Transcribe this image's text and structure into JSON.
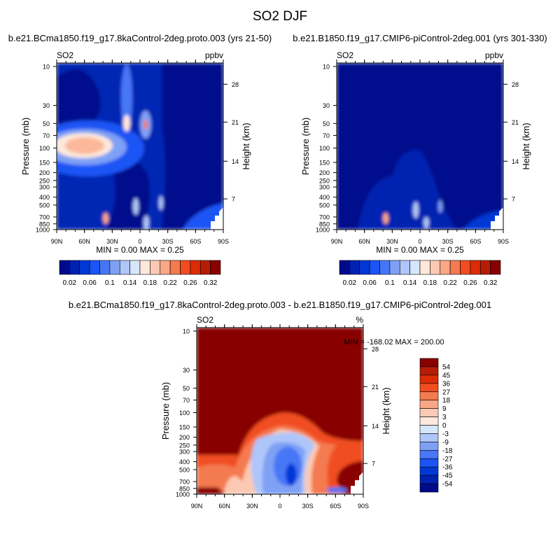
{
  "chart_data": {
    "type": "heatmap",
    "title": "SO2 DJF",
    "panels": [
      {
        "subtitle": "b.e21.BCma1850.f19_g17.8kaControl-2deg.proto.003 (yrs 21-50)",
        "left_label": "SO2",
        "right_label": "ppbv",
        "ylabel": "Pressure (mb)",
        "ylabel_right": "Height (km)",
        "x_ticks": [
          "90N",
          "60N",
          "30N",
          "0",
          "30S",
          "60S",
          "90S"
        ],
        "p_ticks": [
          10,
          30,
          50,
          70,
          100,
          150,
          200,
          250,
          300,
          400,
          500,
          700,
          850,
          1000
        ],
        "h_ticks": [
          {
            "label": "28",
            "p": 16.5
          },
          {
            "label": "21",
            "p": 48
          },
          {
            "label": "14",
            "p": 145
          },
          {
            "label": "7",
            "p": 420
          }
        ],
        "stats": "MIN =   0.00  MAX =   0.25",
        "min": 0.0,
        "max": 0.25,
        "colorbar": {
          "orientation": "horizontal",
          "labels": [
            "0.02",
            "0.06",
            "0.1",
            "0.14",
            "0.18",
            "0.22",
            "0.26",
            "0.32"
          ],
          "colors": [
            "#000a8c",
            "#0022b0",
            "#0038d6",
            "#1c55f5",
            "#4677f6",
            "#7ea0f5",
            "#aec6fa",
            "#d6e6fb",
            "#fde8dc",
            "#fccab4",
            "#f9a784",
            "#f47a50",
            "#f14d20",
            "#dc2c05",
            "#b51d05",
            "#880000"
          ]
        }
      },
      {
        "subtitle": "b.e21.B1850.f19_g17.CMIP6-piControl-2deg.001 (yrs 301-330)",
        "left_label": "SO2",
        "right_label": "ppbv",
        "ylabel": "Pressure (mb)",
        "ylabel_right": "Height (km)",
        "x_ticks": [
          "90N",
          "60N",
          "30N",
          "0",
          "30S",
          "60S",
          "90S"
        ],
        "p_ticks": [
          10,
          30,
          50,
          70,
          100,
          150,
          200,
          250,
          300,
          400,
          500,
          700,
          850,
          1000
        ],
        "h_ticks": [
          {
            "label": "28",
            "p": 16.5
          },
          {
            "label": "21",
            "p": 48
          },
          {
            "label": "14",
            "p": 145
          },
          {
            "label": "7",
            "p": 420
          }
        ],
        "stats": "MIN =   0.00  MAX =   0.25",
        "min": 0.0,
        "max": 0.25,
        "colorbar": {
          "orientation": "horizontal",
          "labels": [
            "0.02",
            "0.06",
            "0.1",
            "0.14",
            "0.18",
            "0.22",
            "0.26",
            "0.32"
          ],
          "colors": [
            "#000a8c",
            "#0022b0",
            "#0038d6",
            "#1c55f5",
            "#4677f6",
            "#7ea0f5",
            "#aec6fa",
            "#d6e6fb",
            "#fde8dc",
            "#fccab4",
            "#f9a784",
            "#f47a50",
            "#f14d20",
            "#dc2c05",
            "#b51d05",
            "#880000"
          ]
        }
      },
      {
        "subtitle": "b.e21.BCma1850.f19_g17.8kaControl-2deg.proto.003 - b.e21.B1850.f19_g17.CMIP6-piControl-2deg.001",
        "left_label": "SO2",
        "right_label": "%",
        "ylabel": "Pressure (mb)",
        "ylabel_right": "Height (km)",
        "x_ticks": [
          "90N",
          "60N",
          "30N",
          "0",
          "30S",
          "60S",
          "90S"
        ],
        "p_ticks": [
          10,
          30,
          50,
          70,
          100,
          150,
          200,
          250,
          300,
          400,
          500,
          700,
          850,
          1000
        ],
        "h_ticks": [
          {
            "label": "28",
            "p": 16.5
          },
          {
            "label": "21",
            "p": 48
          },
          {
            "label": "14",
            "p": 145
          },
          {
            "label": "7",
            "p": 420
          }
        ],
        "stats": "MIN = -168.02  MAX = 200.00",
        "min": -168.02,
        "max": 200.0,
        "colorbar": {
          "orientation": "vertical",
          "labels": [
            "54",
            "45",
            "36",
            "27",
            "18",
            "9",
            "3",
            "0",
            "-3",
            "-9",
            "-18",
            "-27",
            "-36",
            "-45",
            "-54"
          ],
          "colors": [
            "#880000",
            "#b51d05",
            "#dc2c05",
            "#f14d20",
            "#f47a50",
            "#f9a784",
            "#fccab4",
            "#fde8dc",
            "#d6e6fb",
            "#aec6fa",
            "#7ea0f5",
            "#4677f6",
            "#1c55f5",
            "#0038d6",
            "#0022b0",
            "#000a8c"
          ]
        }
      }
    ]
  }
}
